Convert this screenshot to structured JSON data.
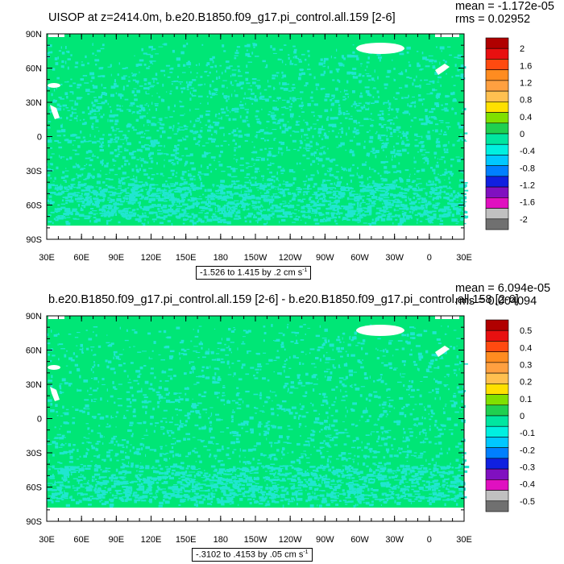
{
  "chart_data": [
    {
      "type": "heatmap",
      "title": "UISOP at z=2414.0m, b.e20.B1850.f09_g17.pi_control.all.159 [2-6]",
      "mean_text": "mean = -1.172e-05",
      "rms_text": "rms = 0.02952",
      "range_label": "-1.526 to 1.415 by .2",
      "units": "cm s",
      "units_exp": "-1",
      "y_ticks": [
        "90N",
        "60N",
        "30N",
        "0",
        "30S",
        "60S",
        "90S"
      ],
      "x_ticks": [
        "30E",
        "60E",
        "90E",
        "120E",
        "150E",
        "180",
        "150W",
        "120W",
        "90W",
        "60W",
        "30W",
        "0",
        "30E"
      ],
      "colorbar_labels": [
        "2",
        "1.6",
        "1.2",
        "0.8",
        "0.4",
        "0",
        "-0.4",
        "-0.8",
        "-1.2",
        "-1.6",
        "-2"
      ],
      "dominant_value_range": [
        -0.2,
        0.2
      ]
    },
    {
      "type": "heatmap",
      "title": "b.e20.B1850.f09_g17.pi_control.all.159 [2-6] - b.e20.B1850.f09_g17.pi_control.all.158 [2-6]",
      "mean_text": "mean = 6.094e-05",
      "rms_text": "rms = 0.004094",
      "range_label": "-.3102 to .4153 by .05",
      "units": "cm s",
      "units_exp": "-1",
      "y_ticks": [
        "90N",
        "60N",
        "30N",
        "0",
        "30S",
        "60S",
        "90S"
      ],
      "x_ticks": [
        "30E",
        "60E",
        "90E",
        "120E",
        "150E",
        "180",
        "150W",
        "120W",
        "90W",
        "60W",
        "30W",
        "0",
        "30E"
      ],
      "colorbar_labels": [
        "0.5",
        "0.4",
        "0.3",
        "0.2",
        "0.1",
        "0",
        "-0.1",
        "-0.2",
        "-0.3",
        "-0.4",
        "-0.5"
      ],
      "dominant_value_range": [
        -0.05,
        0.05
      ]
    }
  ],
  "colors": {
    "colorbar": [
      "#b00000",
      "#e81010",
      "#ff4a10",
      "#ff8c20",
      "#ffa040",
      "#ffc050",
      "#ffe000",
      "#80e000",
      "#20d050",
      "#00e6a0",
      "#00f0e0",
      "#00c8ff",
      "#0080ff",
      "#1020e0",
      "#8010c0",
      "#e010c0",
      "#c0c0c0",
      "#707070"
    ],
    "field_main": "#00e676",
    "field_alt": "#20e6d0",
    "land": "#ffffff"
  }
}
